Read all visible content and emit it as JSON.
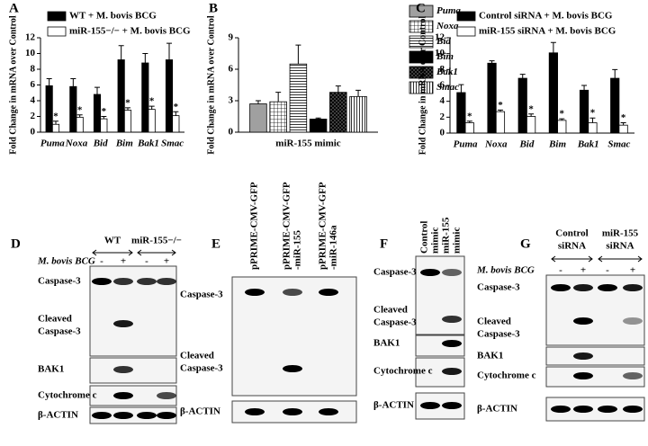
{
  "chart_data": [
    {
      "type": "bar",
      "panel_label": "A",
      "y_label": "Fold Change in mRNA over Control",
      "categories": [
        "Puma",
        "Noxa",
        "Bid",
        "Bim",
        "Bak1",
        "Smac"
      ],
      "series": [
        {
          "name": "WT + M. bovis BCG",
          "color": "#000000",
          "values": [
            5.9,
            5.8,
            4.8,
            9.2,
            8.8,
            9.2
          ],
          "errors": [
            0.9,
            1.0,
            0.9,
            1.8,
            1.2,
            2.1
          ]
        },
        {
          "name": "miR-155−/− + M. bovis BCG",
          "color": "#ffffff",
          "values": [
            1.0,
            1.9,
            1.7,
            2.8,
            2.9,
            2.1
          ],
          "errors": [
            0.4,
            0.3,
            0.3,
            0.3,
            0.4,
            0.5
          ]
        }
      ],
      "annotations": [
        "*",
        "*",
        "*",
        "*",
        "*",
        "*"
      ],
      "ylim": [
        0,
        12
      ],
      "yticks": [
        0,
        2,
        4,
        6,
        8,
        10,
        12
      ],
      "legend": "top-left"
    },
    {
      "type": "bar",
      "panel_label": "B",
      "y_label": "Fold Change in mRNA over Control",
      "categories": [
        "miR-155 mimic"
      ],
      "series": [
        {
          "name": "Puma",
          "color": "#a0a0a0",
          "pattern": "solid",
          "values": [
            2.7
          ],
          "errors": [
            0.3
          ]
        },
        {
          "name": "Noxa",
          "color": "#ffffff",
          "pattern": "grid",
          "values": [
            2.9
          ],
          "errors": [
            0.9
          ]
        },
        {
          "name": "Bid",
          "color": "#ffffff",
          "pattern": "horizontal",
          "values": [
            6.5
          ],
          "errors": [
            1.8
          ]
        },
        {
          "name": "Bim",
          "color": "#000000",
          "pattern": "solid",
          "values": [
            1.25
          ],
          "errors": [
            0.1
          ]
        },
        {
          "name": "Bak1",
          "color": "#ffffff",
          "pattern": "cross",
          "values": [
            3.8
          ],
          "errors": [
            0.6
          ]
        },
        {
          "name": "Smac",
          "color": "#ffffff",
          "pattern": "vertical",
          "values": [
            3.4
          ],
          "errors": [
            0.6
          ]
        }
      ],
      "ylim": [
        0,
        9
      ],
      "yticks": [
        0,
        3,
        6,
        9
      ],
      "legend": "right"
    },
    {
      "type": "bar",
      "panel_label": "C",
      "y_label": "Fold Change in mRNA over Control",
      "categories": [
        "Puma",
        "Noxa",
        "Bid",
        "Bim",
        "Bak1",
        "Smac"
      ],
      "series": [
        {
          "name": "Control siRNA + M. bovis BCG",
          "color": "#000000",
          "values": [
            5.1,
            8.8,
            6.9,
            10.1,
            5.4,
            6.9
          ],
          "errors": [
            1.0,
            0.3,
            0.5,
            1.3,
            0.6,
            1.1
          ]
        },
        {
          "name": "miR-155 siRNA + M. bovis BCG",
          "color": "#ffffff",
          "values": [
            1.3,
            2.7,
            2.1,
            1.6,
            1.3,
            1.0
          ],
          "errors": [
            0.2,
            0.2,
            0.3,
            0.2,
            0.6,
            0.3
          ]
        }
      ],
      "annotations": [
        "*",
        "*",
        "*",
        "*",
        "*",
        "*"
      ],
      "ylim": [
        0,
        12
      ],
      "yticks": [
        0,
        2,
        4,
        6,
        8,
        10,
        12
      ],
      "legend": "top-left"
    }
  ],
  "blots": [
    {
      "panel": "D",
      "headers": [
        [
          "WT"
        ],
        [
          "miR-155−/−"
        ]
      ],
      "treatment": "M. bovis BCG",
      "lanes": [
        "-",
        "+",
        "-",
        "+"
      ],
      "rows": [
        [
          "Caspase-3"
        ],
        [
          "Cleaved",
          "Caspase-3"
        ],
        [
          "BAK1"
        ],
        [
          "Cytochrome c"
        ],
        [
          "β-ACTIN"
        ]
      ]
    },
    {
      "panel": "E",
      "headers": [
        [
          "pPRIME-CMV-GFP"
        ],
        [
          "pPRIME-CMV-GFP",
          "-miR-155"
        ],
        [
          "pPRIME-CMV-GFP",
          "-miR-146a"
        ]
      ],
      "rows": [
        [
          "Caspase-3"
        ],
        [
          "Cleaved",
          "Caspase-3"
        ],
        [
          "β-ACTIN"
        ]
      ]
    },
    {
      "panel": "F",
      "headers": [
        [
          "Control",
          "mimic"
        ],
        [
          "miR-155",
          "mimic"
        ]
      ],
      "rows": [
        [
          "Caspase-3"
        ],
        [
          "Cleaved",
          "Caspase-3"
        ],
        [
          "BAK1"
        ],
        [
          "Cytochrome c"
        ],
        [
          "β-ACTIN"
        ]
      ]
    },
    {
      "panel": "G",
      "headers": [
        [
          "Control",
          "siRNA"
        ],
        [
          "miR-155",
          "siRNA"
        ]
      ],
      "treatment": "M. bovis BCG",
      "lanes": [
        "-",
        "+",
        "-",
        "+"
      ],
      "rows": [
        [
          "Caspase-3"
        ],
        [
          "Cleaved",
          "Caspase-3"
        ],
        [
          "BAK1"
        ],
        [
          "Cytochrome c"
        ],
        [
          "β-ACTIN"
        ]
      ]
    }
  ]
}
